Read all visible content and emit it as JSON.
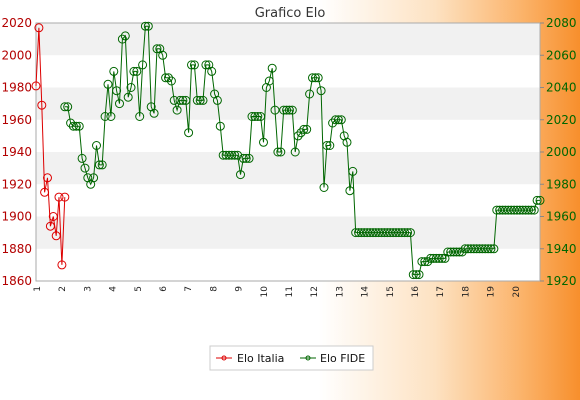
{
  "chart_data": {
    "type": "line",
    "title": "Grafico Elo",
    "y_left_range": [
      1860,
      2020
    ],
    "y_right_range": [
      1920,
      2080
    ],
    "y_left_ticks": [
      1860,
      1880,
      1900,
      1920,
      1940,
      1960,
      1980,
      2000,
      2020
    ],
    "y_right_ticks": [
      1920,
      1940,
      1960,
      1980,
      2000,
      2020,
      2040,
      2060,
      2080
    ],
    "x_tick_labels": [
      "1",
      "2",
      "3",
      "4",
      "5",
      "6",
      "7",
      "8",
      "9",
      "10",
      "11",
      "12",
      "13",
      "14",
      "15",
      "16",
      "17",
      "18",
      "19",
      "20"
    ],
    "grid": "horizontal bands",
    "legend_position": "bottom",
    "colors": {
      "italia": "#dd0000",
      "fide": "#006600"
    },
    "series": [
      {
        "name": "Elo Italia",
        "axis": "left",
        "x": [
          1,
          2,
          3,
          4,
          5,
          6,
          7,
          8,
          9,
          10,
          11
        ],
        "values": [
          1981,
          2017,
          1969,
          1915,
          1924,
          1894,
          1900,
          1888,
          1912,
          1870,
          1912
        ]
      },
      {
        "name": "Elo FIDE",
        "axis": "right",
        "x_start": 11,
        "values": [
          2028,
          2028,
          2018,
          2016,
          2016,
          2016,
          1996,
          1990,
          1984,
          1980,
          1984,
          2004,
          1992,
          1992,
          2022,
          2042,
          2022,
          2050,
          2038,
          2030,
          2070,
          2072,
          2034,
          2040,
          2050,
          2050,
          2022,
          2054,
          2078,
          2078,
          2028,
          2024,
          2064,
          2064,
          2060,
          2046,
          2046,
          2044,
          2032,
          2026,
          2032,
          2032,
          2032,
          2012,
          2054,
          2054,
          2032,
          2032,
          2032,
          2054,
          2054,
          2050,
          2036,
          2032,
          2016,
          1998,
          1998,
          1998,
          1998,
          1998,
          1998,
          1986,
          1996,
          1996,
          1996,
          2022,
          2022,
          2022,
          2022,
          2006,
          2040,
          2044,
          2052,
          2026,
          2000,
          2000,
          2026,
          2026,
          2026,
          2026,
          2000,
          2010,
          2012,
          2014,
          2014,
          2036,
          2046,
          2046,
          2046,
          2038,
          1978,
          2004,
          2004,
          2018,
          2020,
          2020,
          2020,
          2010,
          2006,
          1976,
          1988,
          1950,
          1950,
          1950,
          1950,
          1950,
          1950,
          1950,
          1950,
          1950,
          1950,
          1950,
          1950,
          1950,
          1950,
          1950,
          1950,
          1950,
          1950,
          1950,
          1950,
          1924,
          1924,
          1924,
          1932,
          1932,
          1932,
          1934,
          1934,
          1934,
          1934,
          1934,
          1934,
          1938,
          1938,
          1938,
          1938,
          1938,
          1938,
          1940,
          1940,
          1940,
          1940,
          1940,
          1940,
          1940,
          1940,
          1940,
          1940,
          1940,
          1964,
          1964,
          1964,
          1964,
          1964,
          1964,
          1964,
          1964,
          1964,
          1964,
          1964,
          1964,
          1964,
          1964,
          1970,
          1970
        ]
      }
    ]
  },
  "legend": {
    "italia_label": "Elo Italia",
    "fide_label": "Elo FIDE"
  }
}
